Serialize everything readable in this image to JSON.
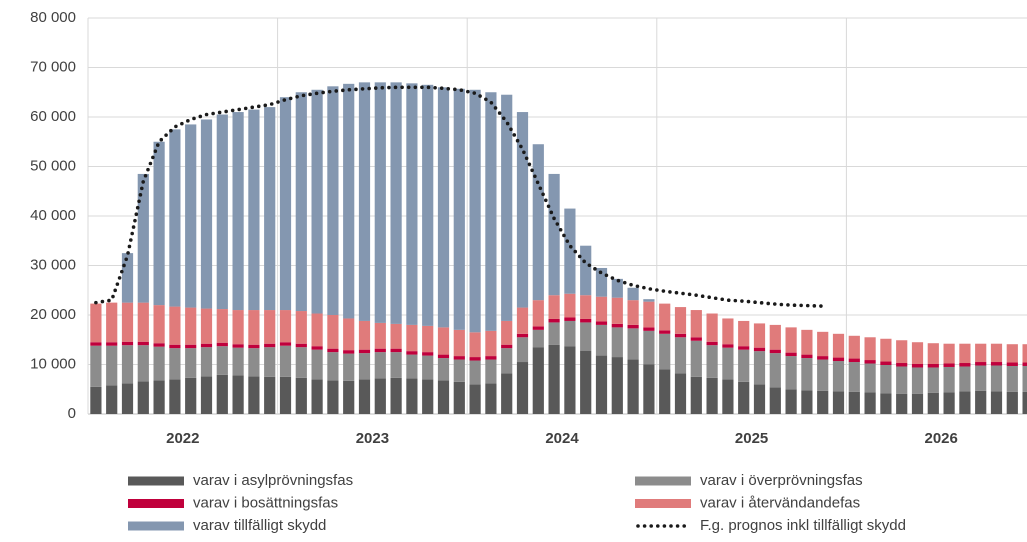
{
  "chart_data": {
    "type": "stacked-bar",
    "ylim": [
      0,
      80000
    ],
    "yticks": [
      0,
      {
        "value": 10000,
        "label": "10 000"
      },
      {
        "value": 20000,
        "label": "20 000"
      },
      {
        "value": 30000,
        "label": "30 000"
      },
      {
        "value": 40000,
        "label": "40 000"
      },
      {
        "value": 50000,
        "label": "50 000"
      },
      {
        "value": 60000,
        "label": "60 000"
      },
      {
        "value": 70000,
        "label": "70 000"
      },
      {
        "value": 80000,
        "label": "80 000"
      }
    ],
    "grid": true,
    "year_labels": [
      "2022",
      "2023",
      "2024",
      "2025",
      "2026"
    ],
    "series": [
      {
        "name": "varav i asylprövningsfas",
        "type": "bar",
        "color": "#595959",
        "values": [
          5500,
          5800,
          6200,
          6600,
          6800,
          7000,
          7300,
          7600,
          7900,
          7800,
          7600,
          7500,
          7500,
          7300,
          7000,
          6800,
          6700,
          7000,
          7200,
          7300,
          7200,
          7000,
          6800,
          6500,
          6000,
          6200,
          8200,
          10500,
          13500,
          14000,
          13700,
          12800,
          11800,
          11500,
          11000,
          10000,
          9000,
          8200,
          7500,
          7300,
          7000,
          6500,
          6000,
          5400,
          5000,
          4800,
          4700,
          4600,
          4500,
          4400,
          4200,
          4100,
          4100,
          4300,
          4400,
          4600,
          4700,
          4600,
          4500,
          4500
        ]
      },
      {
        "name": "varav i överprövningsfas",
        "type": "bar",
        "color": "#8c8c8c",
        "values": [
          8300,
          8000,
          7700,
          7300,
          6800,
          6300,
          6000,
          5900,
          5800,
          5600,
          5700,
          6000,
          6300,
          6200,
          6000,
          5700,
          5500,
          5300,
          5300,
          5200,
          4800,
          4800,
          4500,
          4500,
          4800,
          4800,
          5100,
          5000,
          3500,
          4500,
          5100,
          5700,
          6200,
          6000,
          6300,
          6800,
          7200,
          7300,
          7300,
          6600,
          6400,
          6500,
          6700,
          6900,
          6700,
          6500,
          6300,
          6100,
          6000,
          5800,
          5700,
          5500,
          5300,
          5100,
          5100,
          5000,
          5100,
          5200,
          5200,
          5200
        ]
      },
      {
        "name": "varav i bosättningsfas",
        "type": "bar",
        "color": "#c0003c",
        "values": [
          700,
          700,
          700,
          700,
          700,
          700,
          700,
          700,
          700,
          700,
          700,
          700,
          700,
          700,
          700,
          700,
          700,
          700,
          700,
          700,
          700,
          700,
          700,
          700,
          700,
          700,
          700,
          700,
          700,
          700,
          700,
          700,
          700,
          700,
          700,
          700,
          700,
          700,
          700,
          700,
          700,
          700,
          700,
          700,
          700,
          700,
          700,
          700,
          700,
          700,
          700,
          700,
          700,
          700,
          700,
          700,
          700,
          700,
          700,
          700
        ]
      },
      {
        "name": "varav i återvändandefas",
        "type": "bar",
        "color": "#e07b7b",
        "values": [
          7800,
          8000,
          7900,
          7900,
          7700,
          7700,
          7500,
          7100,
          6800,
          6900,
          7000,
          6800,
          6500,
          6600,
          6600,
          6800,
          6400,
          5800,
          5200,
          5000,
          5300,
          5300,
          5500,
          5300,
          5000,
          5100,
          4800,
          5300,
          5300,
          4800,
          4800,
          4800,
          5000,
          5300,
          5000,
          5200,
          5400,
          5400,
          5500,
          5700,
          5200,
          5100,
          4900,
          5000,
          5100,
          5000,
          4900,
          4800,
          4600,
          4600,
          4600,
          4600,
          4400,
          4200,
          4000,
          3900,
          3700,
          3700,
          3700,
          3700
        ]
      },
      {
        "name": "varav tillfälligt skydd",
        "type": "bar",
        "color": "#8497b0",
        "values": [
          0,
          0,
          10000,
          26000,
          33000,
          35800,
          37000,
          38200,
          39300,
          40000,
          40500,
          41000,
          43000,
          44200,
          45200,
          46200,
          47400,
          48200,
          48600,
          48800,
          48800,
          48700,
          48500,
          48700,
          49000,
          48200,
          45700,
          39500,
          31500,
          24500,
          17200,
          10000,
          5800,
          3800,
          2500,
          500,
          0,
          0,
          0,
          0,
          0,
          0,
          0,
          0,
          0,
          0,
          0,
          0,
          0,
          0,
          0,
          0,
          0,
          0,
          0,
          0,
          0,
          0,
          0,
          0
        ]
      },
      {
        "name": "F.g. prognos inkl tillfälligt skydd",
        "type": "line",
        "color": "#1a1a1a",
        "values": [
          22500,
          23000,
          32000,
          47000,
          55000,
          58000,
          59500,
          60500,
          61000,
          61500,
          62000,
          62500,
          63500,
          64300,
          64800,
          65200,
          65500,
          65700,
          65900,
          66000,
          66000,
          66000,
          65800,
          65500,
          64800,
          63000,
          59000,
          53500,
          46500,
          39500,
          34000,
          30500,
          28500,
          27000,
          26000,
          25300,
          24800,
          24400,
          24000,
          23500,
          23000,
          22800,
          22500,
          22200,
          22000,
          21900,
          21800,
          null,
          null,
          null,
          null,
          null,
          null,
          null,
          null,
          null,
          null,
          null,
          null,
          null
        ]
      }
    ]
  }
}
